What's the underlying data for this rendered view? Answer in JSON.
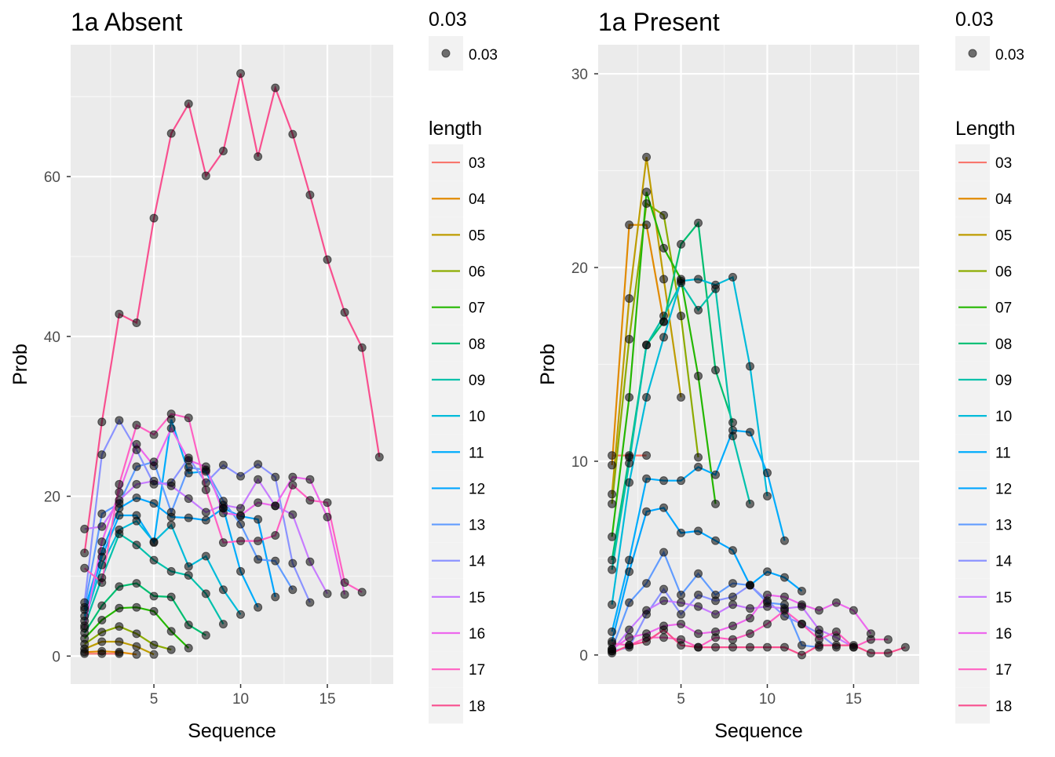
{
  "chart_data": [
    {
      "type": "line",
      "title": "1a Absent",
      "xlabel": "Sequence",
      "ylabel": "Prob",
      "xlim": [
        0.2,
        18.8
      ],
      "ylim": [
        -3.5,
        76.5
      ],
      "xticks": [
        5,
        10,
        15
      ],
      "yticks": [
        0,
        20,
        40,
        60
      ],
      "grid": true,
      "size_legend": {
        "title": "0.03",
        "label": "0.03"
      },
      "color_legend": {
        "title": "length",
        "placement": "right"
      },
      "series": [
        {
          "name": "03",
          "color": "#F8766D",
          "x": [
            1,
            2,
            3
          ],
          "y": [
            0.3,
            0.3,
            0.3
          ]
        },
        {
          "name": "04",
          "color": "#E18A00",
          "x": [
            1,
            2,
            3,
            4
          ],
          "y": [
            0.5,
            0.6,
            0.5,
            0.2
          ]
        },
        {
          "name": "05",
          "color": "#BE9C00",
          "x": [
            1,
            2,
            3,
            4,
            5
          ],
          "y": [
            0.9,
            1.8,
            1.8,
            1.2,
            0.2
          ]
        },
        {
          "name": "06",
          "color": "#8CAB00",
          "x": [
            1,
            2,
            3,
            4,
            5,
            6
          ],
          "y": [
            1.5,
            3.0,
            3.7,
            2.8,
            1.4,
            0.8
          ]
        },
        {
          "name": "07",
          "color": "#24B700",
          "x": [
            1,
            2,
            3,
            4,
            5,
            6,
            7
          ],
          "y": [
            2.2,
            4.5,
            6.0,
            6.1,
            5.6,
            3.1,
            1.0
          ]
        },
        {
          "name": "08",
          "color": "#00BE70",
          "x": [
            1,
            2,
            3,
            4,
            5,
            6,
            7,
            8
          ],
          "y": [
            2.9,
            6.3,
            8.7,
            9.1,
            7.5,
            7.4,
            3.9,
            2.6
          ]
        },
        {
          "name": "09",
          "color": "#00C1AB",
          "x": [
            1,
            2,
            3,
            4,
            5,
            6,
            7,
            8,
            9
          ],
          "y": [
            3.8,
            9.8,
            15.3,
            13.9,
            12.0,
            10.6,
            10.1,
            7.8,
            4.0
          ]
        },
        {
          "name": "10",
          "color": "#00BBDA",
          "x": [
            1,
            2,
            3,
            4,
            5,
            6,
            7,
            8,
            9,
            10
          ],
          "y": [
            4.4,
            11.4,
            15.8,
            16.9,
            14.3,
            16.4,
            11.2,
            12.5,
            8.3,
            5.2
          ]
        },
        {
          "name": "11",
          "color": "#00ACFC",
          "x": [
            1,
            2,
            3,
            4,
            5,
            6,
            7,
            8,
            9,
            10,
            11
          ],
          "y": [
            5.0,
            12.4,
            17.6,
            17.6,
            14.2,
            29.6,
            22.9,
            23.1,
            18.5,
            10.6,
            6.1
          ]
        },
        {
          "name": "12",
          "color": "#00A5FF",
          "x": [
            1,
            2,
            3,
            4,
            5,
            6,
            7,
            8,
            9,
            10,
            11,
            12
          ],
          "y": [
            5.8,
            13.1,
            18.5,
            19.8,
            19.1,
            17.4,
            17.3,
            17.0,
            18.5,
            17.5,
            17.1,
            7.4
          ]
        },
        {
          "name": "13",
          "color": "#619CFF",
          "x": [
            1,
            2,
            3,
            4,
            5,
            6,
            7,
            8,
            9,
            10,
            11,
            12,
            13
          ],
          "y": [
            6.1,
            17.8,
            19.1,
            23.7,
            24.3,
            18.0,
            23.6,
            23.3,
            19.4,
            16.5,
            12.1,
            11.9,
            8.3
          ]
        },
        {
          "name": "14",
          "color": "#8B93FF",
          "x": [
            1,
            2,
            3,
            4,
            5,
            6,
            7,
            8,
            9,
            10,
            11,
            12,
            13,
            14
          ],
          "y": [
            6.7,
            25.2,
            29.5,
            25.8,
            21.5,
            21.7,
            24.8,
            21.7,
            23.9,
            22.5,
            24.0,
            22.4,
            11.6,
            6.7
          ]
        },
        {
          "name": "15",
          "color": "#C77CFF",
          "x": [
            1,
            2,
            3,
            4,
            5,
            6,
            7,
            8,
            9,
            10,
            11,
            12,
            13,
            14,
            15
          ],
          "y": [
            15.9,
            16.2,
            19.5,
            21.5,
            21.9,
            21.3,
            19.7,
            18.0,
            18.9,
            18.5,
            22.1,
            18.8,
            17.7,
            11.8,
            7.8
          ]
        },
        {
          "name": "16",
          "color": "#ED68ED",
          "x": [
            1,
            2,
            3,
            4,
            5,
            6,
            7,
            8,
            9,
            10,
            11,
            12,
            13,
            14,
            15,
            16
          ],
          "y": [
            3.5,
            14.3,
            20.5,
            26.5,
            23.8,
            28.5,
            24.5,
            23.7,
            17.9,
            17.6,
            19.2,
            18.8,
            22.4,
            22.1,
            17.4,
            7.7
          ]
        },
        {
          "name": "17",
          "color": "#FF61C3",
          "x": [
            1,
            2,
            3,
            4,
            5,
            6,
            7,
            8,
            9,
            10,
            11,
            12,
            13,
            14,
            15,
            16,
            17
          ],
          "y": [
            11.0,
            9.2,
            21.5,
            28.9,
            27.7,
            30.3,
            29.8,
            20.8,
            14.2,
            14.4,
            14.4,
            15.1,
            21.4,
            19.5,
            19.2,
            9.2,
            8.0
          ]
        },
        {
          "name": "18",
          "color": "#F8508F",
          "x": [
            1,
            2,
            3,
            4,
            5,
            6,
            7,
            8,
            9,
            10,
            11,
            12,
            13,
            14,
            15,
            16,
            17,
            18
          ],
          "y": [
            12.9,
            29.3,
            42.8,
            41.7,
            54.8,
            65.4,
            69.1,
            60.1,
            63.2,
            72.9,
            62.5,
            71.1,
            65.3,
            57.7,
            49.6,
            43.0,
            38.6,
            24.9
          ]
        }
      ]
    },
    {
      "type": "line",
      "title": "1a Present",
      "xlabel": "Sequence",
      "ylabel": "Prob",
      "xlim": [
        0.2,
        18.8
      ],
      "ylim": [
        -1.5,
        31.5
      ],
      "xticks": [
        5,
        10,
        15
      ],
      "yticks": [
        0,
        10,
        20,
        30
      ],
      "grid": true,
      "size_legend": {
        "title": "0.03",
        "label": "0.03"
      },
      "color_legend": {
        "title": "Length",
        "placement": "right"
      },
      "series": [
        {
          "name": "03",
          "color": "#F8766D",
          "x": [
            1,
            2,
            3
          ],
          "y": [
            10.3,
            10.3,
            10.3
          ]
        },
        {
          "name": "04",
          "color": "#E18A00",
          "x": [
            1,
            2,
            3,
            4
          ],
          "y": [
            9.8,
            22.2,
            22.2,
            17.2
          ]
        },
        {
          "name": "05",
          "color": "#BE9C00",
          "x": [
            1,
            2,
            3,
            4,
            5
          ],
          "y": [
            8.3,
            18.4,
            25.7,
            19.4,
            13.3
          ]
        },
        {
          "name": "06",
          "color": "#8CAB00",
          "x": [
            1,
            2,
            3,
            4,
            5,
            6
          ],
          "y": [
            7.8,
            16.3,
            23.3,
            22.7,
            17.5,
            10.2
          ]
        },
        {
          "name": "07",
          "color": "#24B700",
          "x": [
            1,
            2,
            3,
            4,
            5,
            6,
            7
          ],
          "y": [
            6.1,
            13.3,
            23.9,
            21.0,
            19.4,
            14.4,
            7.8
          ]
        },
        {
          "name": "08",
          "color": "#00BE70",
          "x": [
            1,
            2,
            3,
            4,
            5,
            6,
            7,
            8
          ],
          "y": [
            4.9,
            10.2,
            16.0,
            17.2,
            21.2,
            22.3,
            14.7,
            12.0
          ]
        },
        {
          "name": "09",
          "color": "#00C1AB",
          "x": [
            1,
            2,
            3,
            4,
            5,
            6,
            7,
            8,
            9
          ],
          "y": [
            4.4,
            9.9,
            16.0,
            17.5,
            19.2,
            17.8,
            18.9,
            11.3,
            7.8
          ]
        },
        {
          "name": "10",
          "color": "#00BBDA",
          "x": [
            1,
            2,
            3,
            4,
            5,
            6,
            7,
            8,
            9,
            10
          ],
          "y": [
            2.6,
            8.9,
            13.3,
            16.4,
            19.3,
            19.4,
            19.1,
            19.5,
            14.9,
            8.2
          ]
        },
        {
          "name": "11",
          "color": "#00ACFC",
          "x": [
            1,
            2,
            3,
            4,
            5,
            6,
            7,
            8,
            9,
            10,
            11
          ],
          "y": [
            1.2,
            4.9,
            9.1,
            9.0,
            9.0,
            9.7,
            9.3,
            11.6,
            11.5,
            9.4,
            5.9
          ]
        },
        {
          "name": "12",
          "color": "#00A5FF",
          "x": [
            1,
            2,
            3,
            4,
            5,
            6,
            7,
            8,
            9,
            10,
            11,
            12
          ],
          "y": [
            0.7,
            4.3,
            7.4,
            7.6,
            6.3,
            6.4,
            5.9,
            5.4,
            3.6,
            4.3,
            4.0,
            3.3
          ]
        },
        {
          "name": "13",
          "color": "#619CFF",
          "x": [
            1,
            2,
            3,
            4,
            5,
            6,
            7,
            8,
            9,
            10,
            11,
            12,
            13
          ],
          "y": [
            0.3,
            2.7,
            3.7,
            5.3,
            3.1,
            4.2,
            3.1,
            3.7,
            3.6,
            2.7,
            2.6,
            0.5,
            0.4
          ]
        },
        {
          "name": "14",
          "color": "#8B93FF",
          "x": [
            1,
            2,
            3,
            4,
            5,
            6,
            7,
            8,
            9,
            10,
            11,
            12,
            13,
            14
          ],
          "y": [
            0.2,
            0.4,
            2.1,
            3.4,
            2.1,
            3.1,
            2.8,
            3.0,
            3.6,
            2.8,
            2.0,
            1.6,
            1.1,
            0.4
          ]
        },
        {
          "name": "15",
          "color": "#C77CFF",
          "x": [
            1,
            2,
            3,
            4,
            5,
            6,
            7,
            8,
            9,
            10,
            11,
            12,
            13,
            14,
            15
          ],
          "y": [
            0.2,
            1.3,
            2.3,
            2.8,
            2.7,
            2.5,
            2.1,
            2.6,
            2.4,
            2.5,
            2.4,
            2.5,
            1.3,
            0.9,
            0.4
          ]
        },
        {
          "name": "16",
          "color": "#ED68ED",
          "x": [
            1,
            2,
            3,
            4,
            5,
            6,
            7,
            8,
            9,
            10,
            11,
            12,
            13,
            14,
            15,
            16
          ],
          "y": [
            0.3,
            0.9,
            1.1,
            1.5,
            1.6,
            1.1,
            1.2,
            1.5,
            1.9,
            3.1,
            3.0,
            2.6,
            2.3,
            2.7,
            2.3,
            1.1
          ]
        },
        {
          "name": "17",
          "color": "#FF61C3",
          "x": [
            1,
            2,
            3,
            4,
            5,
            6,
            7,
            8,
            9,
            10,
            11,
            12,
            13,
            14,
            15,
            16,
            17
          ],
          "y": [
            0.6,
            0.5,
            0.9,
            0.9,
            0.8,
            0.4,
            0.9,
            0.8,
            1.1,
            1.6,
            2.3,
            1.6,
            0.8,
            1.2,
            0.4,
            0.8,
            0.8
          ]
        },
        {
          "name": "18",
          "color": "#F8508F",
          "x": [
            1,
            2,
            3,
            4,
            5,
            6,
            7,
            8,
            9,
            10,
            11,
            12,
            13,
            14,
            15,
            16,
            17,
            18
          ],
          "y": [
            0.1,
            0.5,
            0.7,
            1.3,
            0.5,
            0.4,
            0.4,
            0.4,
            0.4,
            0.4,
            0.4,
            0.0,
            0.5,
            0.5,
            0.5,
            0.1,
            0.1,
            0.4
          ]
        }
      ]
    }
  ]
}
